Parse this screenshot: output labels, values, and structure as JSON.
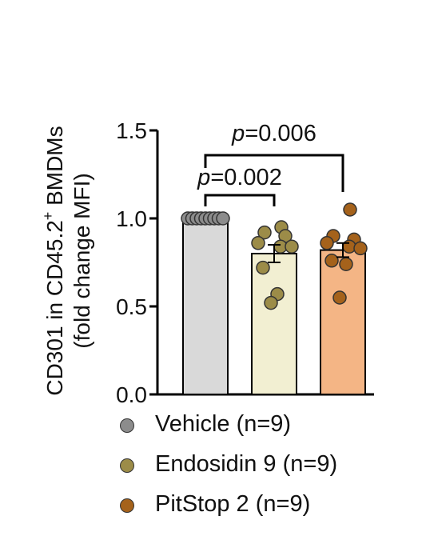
{
  "chart_data": {
    "type": "bar",
    "ylabel_line1": "CD301 in CD45.2",
    "ylabel_sup": "+",
    "ylabel_line1_end": " BMDMs",
    "ylabel_line2": "(fold change MFI)",
    "ylim": [
      0,
      1.5
    ],
    "yticks": [
      "0.0",
      "0.5",
      "1.0",
      "1.5"
    ],
    "bars": [
      {
        "name": "Vehicle (n=9)",
        "mean": 1.0,
        "sem": 0.0,
        "bar_color": "#d9d9d9",
        "dot_color": "#8c8c8c",
        "points": [
          1.0,
          1.0,
          1.0,
          1.0,
          1.0,
          1.0,
          1.0,
          1.0,
          1.0
        ]
      },
      {
        "name": "Endosidin 9 (n=9)",
        "mean": 0.8,
        "sem": 0.05,
        "bar_color": "#f2efd2",
        "dot_color": "#9c8c48",
        "points": [
          0.95,
          0.92,
          0.9,
          0.86,
          0.84,
          0.84,
          0.72,
          0.57,
          0.52
        ]
      },
      {
        "name": "PitStop 2 (n=9)",
        "mean": 0.82,
        "sem": 0.04,
        "bar_color": "#f4b585",
        "dot_color": "#a5621b",
        "points": [
          1.05,
          0.9,
          0.88,
          0.86,
          0.84,
          0.83,
          0.76,
          0.74,
          0.55
        ]
      }
    ],
    "comparisons": [
      {
        "from": 0,
        "to": 1,
        "label": "p=0.002"
      },
      {
        "from": 0,
        "to": 2,
        "label": "p=0.006"
      }
    ]
  }
}
